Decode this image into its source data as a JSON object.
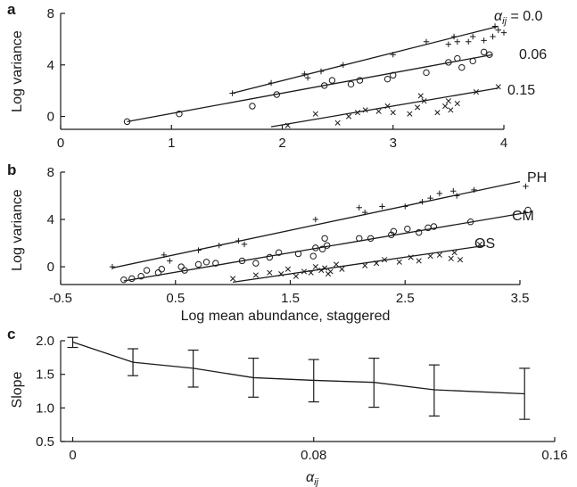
{
  "chart_data": [
    {
      "id": "a",
      "panel_label": "a",
      "type": "scatter",
      "ylabel": "Log variance",
      "xlabel": "",
      "xlim": [
        0,
        4
      ],
      "ylim": [
        -1,
        8
      ],
      "xticks": [
        "0",
        "1",
        "2",
        "3",
        "4"
      ],
      "yticks": [
        "0",
        "4",
        "8"
      ],
      "series": [
        {
          "name": "0.0",
          "label_prefix": "α",
          "label_sub": "ij",
          "label_eq": " = ",
          "marker": "plus",
          "line": [
            1.55,
            1.8,
            3.95,
            7.0
          ],
          "points": [
            [
              1.55,
              1.8
            ],
            [
              1.9,
              2.6
            ],
            [
              2.2,
              3.3
            ],
            [
              2.23,
              3.0
            ],
            [
              2.35,
              3.5
            ],
            [
              2.55,
              4.0
            ],
            [
              3.0,
              4.8
            ],
            [
              3.3,
              5.8
            ],
            [
              3.5,
              5.6
            ],
            [
              3.55,
              6.2
            ],
            [
              3.58,
              5.8
            ],
            [
              3.68,
              5.8
            ],
            [
              3.72,
              6.2
            ],
            [
              3.82,
              5.9
            ],
            [
              3.9,
              6.2
            ],
            [
              3.92,
              7.0
            ],
            [
              3.95,
              6.7
            ],
            [
              4.0,
              6.5
            ]
          ]
        },
        {
          "name": "0.06",
          "marker": "circle",
          "line": [
            0.6,
            -0.4,
            3.9,
            4.8
          ],
          "points": [
            [
              0.6,
              -0.4
            ],
            [
              1.07,
              0.2
            ],
            [
              1.73,
              0.8
            ],
            [
              1.95,
              1.7
            ],
            [
              2.38,
              2.4
            ],
            [
              2.45,
              2.8
            ],
            [
              2.62,
              2.5
            ],
            [
              2.7,
              2.8
            ],
            [
              2.95,
              2.9
            ],
            [
              3.0,
              3.2
            ],
            [
              3.3,
              3.4
            ],
            [
              3.5,
              4.2
            ],
            [
              3.58,
              4.5
            ],
            [
              3.62,
              3.8
            ],
            [
              3.72,
              4.3
            ],
            [
              3.82,
              5.0
            ],
            [
              3.87,
              4.8
            ]
          ]
        },
        {
          "name": "0.15",
          "marker": "x",
          "line": [
            1.9,
            -0.8,
            3.95,
            2.2
          ],
          "points": [
            [
              2.05,
              -0.7
            ],
            [
              2.3,
              0.2
            ],
            [
              2.5,
              -0.5
            ],
            [
              2.6,
              0.0
            ],
            [
              2.68,
              0.3
            ],
            [
              2.75,
              0.5
            ],
            [
              2.87,
              0.4
            ],
            [
              2.95,
              0.8
            ],
            [
              3.0,
              0.3
            ],
            [
              3.15,
              0.2
            ],
            [
              3.22,
              0.7
            ],
            [
              3.25,
              1.6
            ],
            [
              3.28,
              1.2
            ],
            [
              3.4,
              0.3
            ],
            [
              3.47,
              0.8
            ],
            [
              3.5,
              1.2
            ],
            [
              3.52,
              0.5
            ],
            [
              3.58,
              1.0
            ],
            [
              3.75,
              1.9
            ],
            [
              3.95,
              2.3
            ]
          ]
        }
      ]
    },
    {
      "id": "b",
      "panel_label": "b",
      "type": "scatter",
      "ylabel": "Log variance",
      "xlabel": "Log mean abundance, staggered",
      "xlim": [
        -0.5,
        3.5
      ],
      "ylim": [
        -1.5,
        8
      ],
      "xticks": [
        "-0.5",
        "0.5",
        "1.5",
        "2.5",
        "3.5"
      ],
      "yticks": [
        "0",
        "4",
        "8"
      ],
      "series": [
        {
          "name": "PH",
          "marker": "plus",
          "line": [
            -0.05,
            -0.1,
            3.5,
            7.2
          ],
          "points": [
            [
              -0.05,
              0.0
            ],
            [
              0.4,
              1.0
            ],
            [
              0.45,
              0.5
            ],
            [
              0.7,
              1.4
            ],
            [
              0.88,
              1.8
            ],
            [
              1.05,
              2.2
            ],
            [
              1.1,
              1.9
            ],
            [
              1.72,
              4.0
            ],
            [
              2.1,
              5.0
            ],
            [
              2.15,
              4.6
            ],
            [
              2.3,
              5.1
            ],
            [
              2.5,
              5.1
            ],
            [
              2.65,
              5.5
            ],
            [
              2.72,
              5.8
            ],
            [
              2.8,
              6.2
            ],
            [
              2.92,
              6.4
            ],
            [
              2.95,
              6.0
            ],
            [
              3.1,
              6.5
            ],
            [
              3.55,
              6.8
            ]
          ]
        },
        {
          "name": "CM",
          "marker": "circle",
          "line": [
            0.05,
            -1.2,
            3.57,
            4.6
          ],
          "points": [
            [
              0.05,
              -1.1
            ],
            [
              0.12,
              -1.0
            ],
            [
              0.2,
              -0.8
            ],
            [
              0.25,
              -0.3
            ],
            [
              0.35,
              -0.5
            ],
            [
              0.38,
              -0.2
            ],
            [
              0.55,
              0.0
            ],
            [
              0.58,
              -0.3
            ],
            [
              0.7,
              0.2
            ],
            [
              0.77,
              0.4
            ],
            [
              0.85,
              0.3
            ],
            [
              1.08,
              0.5
            ],
            [
              1.2,
              0.3
            ],
            [
              1.32,
              0.8
            ],
            [
              1.4,
              1.2
            ],
            [
              1.57,
              1.1
            ],
            [
              1.7,
              0.9
            ],
            [
              1.72,
              1.6
            ],
            [
              1.78,
              1.5
            ],
            [
              1.8,
              2.4
            ],
            [
              1.82,
              1.8
            ],
            [
              2.1,
              2.4
            ],
            [
              2.2,
              2.4
            ],
            [
              2.38,
              2.7
            ],
            [
              2.4,
              3.0
            ],
            [
              2.52,
              3.2
            ],
            [
              2.62,
              2.9
            ],
            [
              2.7,
              3.3
            ],
            [
              2.75,
              3.4
            ],
            [
              3.07,
              3.8
            ],
            [
              3.57,
              4.8
            ]
          ]
        },
        {
          "name": "OS",
          "marker": "x",
          "line": [
            1.0,
            -1.3,
            3.2,
            1.8
          ],
          "points": [
            [
              1.0,
              -1.0
            ],
            [
              1.2,
              -0.7
            ],
            [
              1.32,
              -0.5
            ],
            [
              1.42,
              -0.6
            ],
            [
              1.48,
              -0.2
            ],
            [
              1.55,
              -0.8
            ],
            [
              1.62,
              -0.4
            ],
            [
              1.68,
              -0.5
            ],
            [
              1.72,
              0.0
            ],
            [
              1.77,
              -0.3
            ],
            [
              1.8,
              -0.1
            ],
            [
              1.83,
              -0.6
            ],
            [
              1.85,
              -0.4
            ],
            [
              1.9,
              0.2
            ],
            [
              1.95,
              -0.2
            ],
            [
              2.15,
              0.1
            ],
            [
              2.25,
              0.3
            ],
            [
              2.32,
              0.6
            ],
            [
              2.45,
              0.4
            ],
            [
              2.55,
              0.8
            ],
            [
              2.62,
              0.5
            ],
            [
              2.72,
              0.9
            ],
            [
              2.8,
              1.0
            ],
            [
              2.9,
              0.7
            ],
            [
              2.93,
              1.2
            ],
            [
              2.98,
              0.6
            ],
            [
              3.15,
              1.9
            ]
          ]
        }
      ]
    },
    {
      "id": "c",
      "panel_label": "c",
      "type": "line",
      "ylabel": "Slope",
      "xlabel_main": "α",
      "xlabel_sub": "ij",
      "xlim": [
        -0.004,
        0.16
      ],
      "ylim": [
        0.5,
        2.0
      ],
      "xticks": [
        "0",
        "0.08",
        "0.16"
      ],
      "yticks": [
        "2.0",
        "1.5",
        "1.0",
        "0.5"
      ],
      "x": [
        0.0,
        0.02,
        0.04,
        0.06,
        0.08,
        0.1,
        0.12,
        0.15
      ],
      "y": [
        1.98,
        1.68,
        1.59,
        1.45,
        1.41,
        1.38,
        1.27,
        1.21
      ],
      "err_low": [
        1.9,
        1.48,
        1.31,
        1.16,
        1.09,
        1.01,
        0.88,
        0.83
      ],
      "err_high": [
        2.05,
        1.88,
        1.86,
        1.74,
        1.72,
        1.74,
        1.64,
        1.59
      ]
    }
  ]
}
